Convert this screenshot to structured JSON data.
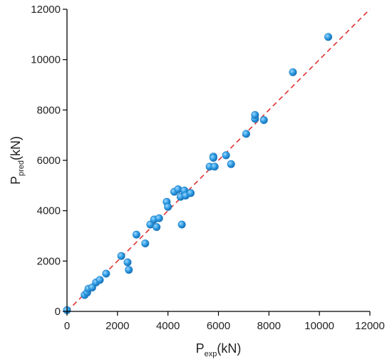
{
  "chart_data": {
    "type": "scatter",
    "title": "",
    "xlabel": {
      "main": "P",
      "sub": "exp",
      "unit": "(kN)"
    },
    "ylabel": {
      "main": "P",
      "sub": "pred",
      "unit": "(kN)"
    },
    "xlim": [
      0,
      12000
    ],
    "ylim": [
      0,
      12000
    ],
    "xticks": [
      0,
      2000,
      4000,
      6000,
      8000,
      10000,
      12000
    ],
    "yticks": [
      0,
      2000,
      4000,
      6000,
      8000,
      10000,
      12000
    ],
    "xtick_labels": [
      "0",
      "2000",
      "4000",
      "6000",
      "8000",
      "10000",
      "12000"
    ],
    "ytick_labels": [
      "0",
      "2000",
      "4000",
      "6000",
      "8000",
      "10000",
      "12000"
    ],
    "grid": false,
    "reference_line": {
      "style": "dashed",
      "from": [
        0,
        0
      ],
      "to": [
        12000,
        12000
      ]
    },
    "series": [
      {
        "x": [
          0,
          700,
          800,
          850,
          1000,
          1150,
          1300,
          1550,
          2150,
          2400,
          2450,
          2750,
          3100,
          3300,
          3450,
          3550,
          3650,
          3950,
          4000,
          4250,
          4400,
          4500,
          4550,
          4650,
          4700,
          4900,
          5650,
          5800,
          5800,
          5850,
          6300,
          6500,
          7100,
          7450,
          7450,
          7800,
          8950,
          10350
        ],
        "y": [
          50,
          650,
          750,
          900,
          950,
          1150,
          1250,
          1500,
          2200,
          1950,
          1650,
          3050,
          2700,
          3450,
          3650,
          3350,
          3700,
          4350,
          4150,
          4750,
          4850,
          4550,
          3450,
          4800,
          4600,
          4700,
          5750,
          6150,
          6100,
          5750,
          6200,
          5850,
          7050,
          7650,
          7800,
          7600,
          9500,
          10900
        ]
      }
    ],
    "colors": {
      "points": "#2f9fe6",
      "reference_line": "#e03030",
      "axes": "#000000"
    }
  }
}
